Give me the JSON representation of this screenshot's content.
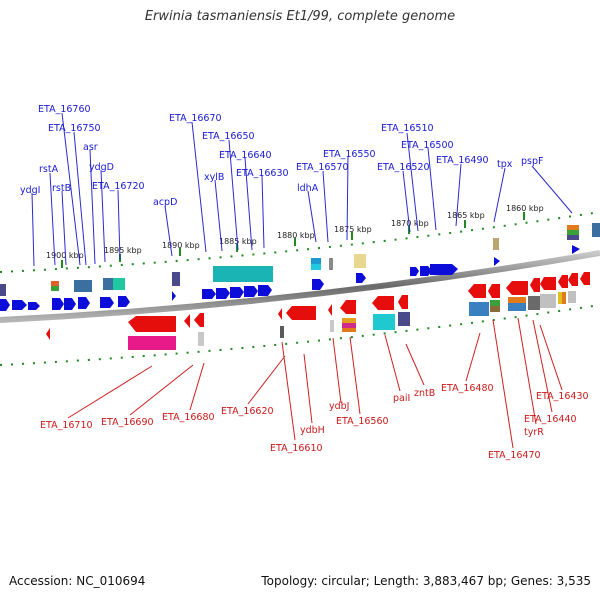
{
  "title": "Erwinia tasmaniensis Et1/99, complete genome",
  "accession": "Accession: NC_010694",
  "summary": "Topology: circular; Length: 3,883,467 bp; Genes: 3,535",
  "colors": {
    "forward": "#0d0dd9",
    "reverse": "#e60d0d",
    "forward_label": "#1a1ad6",
    "reverse_label": "#cc1a1a"
  },
  "kbp_labels": [
    "1900 kbp",
    "1895 kbp",
    "1890 kbp",
    "1885 kbp",
    "1880 kbp",
    "1875 kbp",
    "1870 kbp",
    "1865 kbp",
    "1860 kbp"
  ],
  "forward_labels": [
    "ETA_16760",
    "ETA_16750",
    "asr",
    "rstA",
    "ydgD",
    "rstB",
    "ETA_16720",
    "ydgI",
    "acpD",
    "ETA_16670",
    "ETA_16650",
    "ETA_16640",
    "xylB",
    "ETA_16630",
    "ETA_16550",
    "ETA_16570",
    "ldhA",
    "ETA_16510",
    "ETA_16500",
    "ETA_16520",
    "ETA_16490",
    "tpx",
    "pspF"
  ],
  "reverse_labels": [
    "ETA_16710",
    "ETA_16690",
    "ETA_16680",
    "ETA_16620",
    "ETA_16610",
    "ydbH",
    "ydbJ",
    "ETA_16560",
    "paiI",
    "zntB",
    "ETA_16480",
    "ETA_16470",
    "tyrR",
    "ETA_16440",
    "ETA_16430"
  ]
}
